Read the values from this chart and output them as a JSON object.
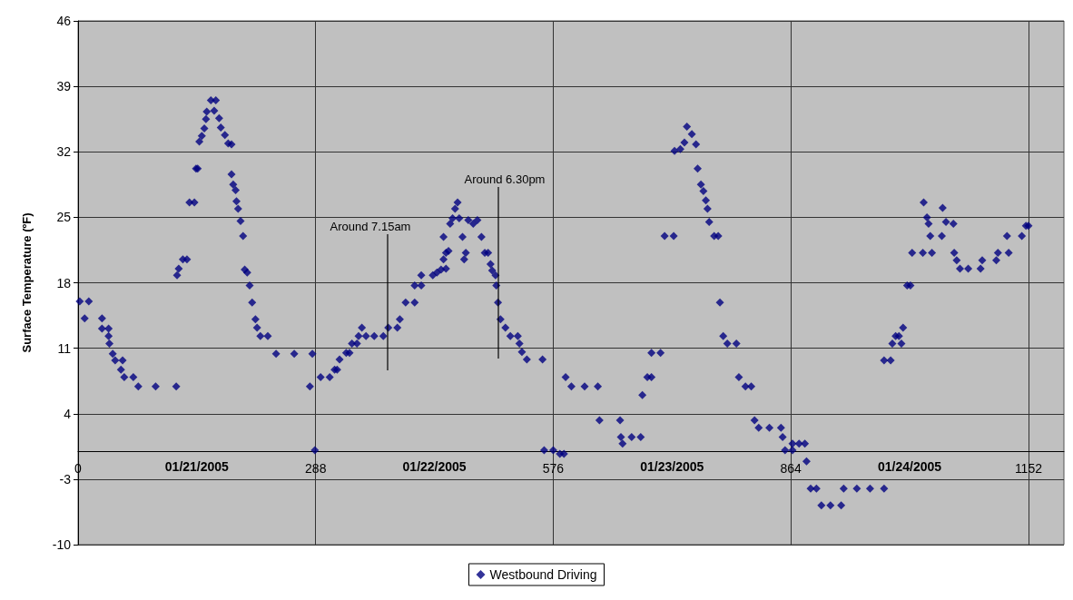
{
  "chart_data": {
    "type": "scatter",
    "ylabel": "Surface Temperature (ºF)",
    "xlim": [
      0,
      1195
    ],
    "ylim": [
      -10,
      46
    ],
    "xticks": [
      0,
      {
        "value": 144,
        "label": "01/21/2005"
      },
      288,
      {
        "value": 432,
        "label": "01/22/2005"
      },
      576,
      {
        "value": 720,
        "label": "01/23/2005"
      },
      864,
      {
        "value": 1008,
        "label": "01/24/2005"
      },
      {
        "value": 1152,
        "label": "1152"
      }
    ],
    "yticks": [
      -10,
      -3,
      4,
      11,
      18,
      25,
      32,
      39,
      46
    ],
    "grid": true,
    "legend": "bottom",
    "marker": "diamond",
    "annotations": [
      "Around 7.15am",
      "Around 6.30pm"
    ],
    "series": [
      {
        "name": "Westbound Driving",
        "color": "#000080",
        "x": [
          2,
          13,
          8,
          29,
          29,
          37,
          37,
          38,
          42,
          45,
          54,
          52,
          56,
          67,
          73,
          94,
          119,
          120,
          122,
          127,
          132,
          135,
          141,
          143,
          145,
          147,
          150,
          153,
          155,
          156,
          161,
          167,
          165,
          171,
          173,
          178,
          182,
          186,
          186,
          188,
          191,
          192,
          194,
          197,
          200,
          202,
          205,
          208,
          211,
          215,
          217,
          221,
          230,
          240,
          262,
          284,
          281,
          287,
          294,
          305,
          311,
          314,
          317,
          325,
          329,
          332,
          338,
          340,
          344,
          349,
          359,
          370,
          376,
          387,
          390,
          397,
          408,
          408,
          416,
          416,
          430,
          435,
          440,
          443,
          446,
          443,
          446,
          449,
          451,
          454,
          457,
          460,
          462,
          466,
          468,
          470,
          473,
          479,
          484,
          489,
          493,
          497,
          500,
          502,
          506,
          507,
          509,
          512,
          518,
          524,
          533,
          535,
          538,
          544,
          563,
          565,
          576,
          584,
          589,
          591,
          598,
          614,
          630,
          632,
          657,
          658,
          660,
          671,
          682,
          684,
          690,
          695,
          695,
          706,
          711,
          722,
          723,
          730,
          735,
          738,
          744,
          749,
          751,
          755,
          758,
          761,
          763,
          765,
          771,
          776,
          778,
          782,
          787,
          798,
          801,
          809,
          816,
          820,
          825,
          838,
          852,
          854,
          857,
          866,
          866,
          874,
          881,
          883,
          888,
          895,
          901,
          912,
          925,
          928,
          944,
          960,
          977,
          977,
          985,
          987,
          991,
          995,
          998,
          1000,
          1005,
          1009,
          1011,
          1024,
          1025,
          1029,
          1031,
          1033,
          1047,
          1035,
          1048,
          1052,
          1061,
          1062,
          1065,
          1069,
          1079,
          1094,
          1096,
          1113,
          1115,
          1128,
          1126,
          1144,
          1149,
          1152
        ],
        "values": [
          16.0,
          16.0,
          14.2,
          14.2,
          13.1,
          13.1,
          12.3,
          11.5,
          10.4,
          9.7,
          9.7,
          8.7,
          7.9,
          7.9,
          6.9,
          6.9,
          6.9,
          18.8,
          19.5,
          20.5,
          20.5,
          26.6,
          26.6,
          30.2,
          30.2,
          33.1,
          33.7,
          34.5,
          35.5,
          36.3,
          37.5,
          37.5,
          36.4,
          35.6,
          34.6,
          33.8,
          32.9,
          32.8,
          29.6,
          28.5,
          27.9,
          26.7,
          25.9,
          24.6,
          23.0,
          19.4,
          19.1,
          17.7,
          15.9,
          14.1,
          13.2,
          12.3,
          12.3,
          10.4,
          10.4,
          10.4,
          6.9,
          0.1,
          7.9,
          7.9,
          8.7,
          8.7,
          9.8,
          10.5,
          10.5,
          11.5,
          11.5,
          12.3,
          13.2,
          12.3,
          12.3,
          12.3,
          13.2,
          13.2,
          14.1,
          15.9,
          15.9,
          17.7,
          17.7,
          18.8,
          18.8,
          19.1,
          19.4,
          20.5,
          21.2,
          22.9,
          19.5,
          21.4,
          24.3,
          24.9,
          25.9,
          26.6,
          24.9,
          22.9,
          20.5,
          21.2,
          24.7,
          24.3,
          24.7,
          22.9,
          21.2,
          21.2,
          20.0,
          19.3,
          18.8,
          17.7,
          15.9,
          14.1,
          13.2,
          12.3,
          12.3,
          11.5,
          10.6,
          9.8,
          9.8,
          0.1,
          0.1,
          -0.3,
          -0.3,
          7.9,
          6.9,
          6.9,
          6.9,
          3.3,
          3.3,
          1.5,
          0.8,
          1.5,
          1.5,
          6.0,
          7.9,
          7.9,
          10.5,
          10.5,
          23.0,
          23.0,
          32.1,
          32.3,
          33.0,
          34.7,
          33.9,
          32.8,
          30.2,
          28.5,
          27.8,
          26.8,
          25.9,
          24.5,
          23.0,
          23.0,
          15.9,
          12.3,
          11.5,
          11.5,
          7.9,
          6.9,
          6.9,
          3.3,
          2.5,
          2.5,
          2.5,
          1.5,
          0.1,
          0.1,
          0.8,
          0.8,
          0.8,
          -1.1,
          -4.0,
          -4.0,
          -5.8,
          -5.8,
          -5.8,
          -4.0,
          -4.0,
          -4.0,
          -4.0,
          9.7,
          9.7,
          11.5,
          12.3,
          12.3,
          11.5,
          13.2,
          17.7,
          17.7,
          21.2,
          21.2,
          26.6,
          25.0,
          24.3,
          23.0,
          23.0,
          21.2,
          26.0,
          24.5,
          24.3,
          21.2,
          20.4,
          19.5,
          19.5,
          19.5,
          20.4,
          20.4,
          21.2,
          21.2,
          23.0,
          23.0,
          24.1,
          24.1
        ]
      }
    ]
  }
}
